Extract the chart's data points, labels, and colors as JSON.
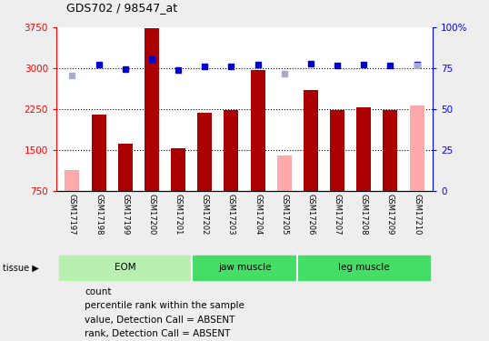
{
  "title": "GDS702 / 98547_at",
  "samples": [
    "GSM17197",
    "GSM17198",
    "GSM17199",
    "GSM17200",
    "GSM17201",
    "GSM17202",
    "GSM17203",
    "GSM17204",
    "GSM17205",
    "GSM17206",
    "GSM17207",
    "GSM17208",
    "GSM17209",
    "GSM17210"
  ],
  "bar_values": [
    null,
    2150,
    1620,
    3730,
    1530,
    2190,
    2230,
    2970,
    null,
    2600,
    2240,
    2290,
    2240,
    null
  ],
  "bar_absent": [
    1130,
    null,
    null,
    null,
    null,
    null,
    null,
    null,
    1400,
    null,
    null,
    null,
    null,
    2310
  ],
  "rank_values": [
    null,
    3060,
    2980,
    3170,
    2960,
    3040,
    3040,
    3070,
    null,
    3080,
    3050,
    3060,
    3050,
    3060
  ],
  "rank_absent": [
    2870,
    null,
    null,
    null,
    null,
    null,
    null,
    null,
    2900,
    null,
    null,
    null,
    null,
    3050
  ],
  "tissue_groups": [
    {
      "label": "EOM",
      "start": 0,
      "end": 4
    },
    {
      "label": "jaw muscle",
      "start": 5,
      "end": 8
    },
    {
      "label": "leg muscle",
      "start": 9,
      "end": 13
    }
  ],
  "ylim_left": [
    750,
    3750
  ],
  "ylim_right": [
    0,
    100
  ],
  "bar_color_present": "#aa0000",
  "bar_color_absent": "#ffaaaa",
  "rank_color_present": "#0000cc",
  "rank_color_absent": "#aaaacc",
  "background_color": "#eeeeee",
  "plot_bg": "#ffffff",
  "yticks_left": [
    750,
    1500,
    2250,
    3000,
    3750
  ],
  "yticks_right": [
    0,
    25,
    50,
    75,
    100
  ],
  "tissue_color_eom": "#b8f0b0",
  "tissue_color_other": "#44dd66",
  "sample_bg": "#cccccc",
  "legend_items": [
    {
      "label": "count",
      "color": "#aa0000"
    },
    {
      "label": "percentile rank within the sample",
      "color": "#0000cc"
    },
    {
      "label": "value, Detection Call = ABSENT",
      "color": "#ffaaaa"
    },
    {
      "label": "rank, Detection Call = ABSENT",
      "color": "#aaaacc"
    }
  ]
}
